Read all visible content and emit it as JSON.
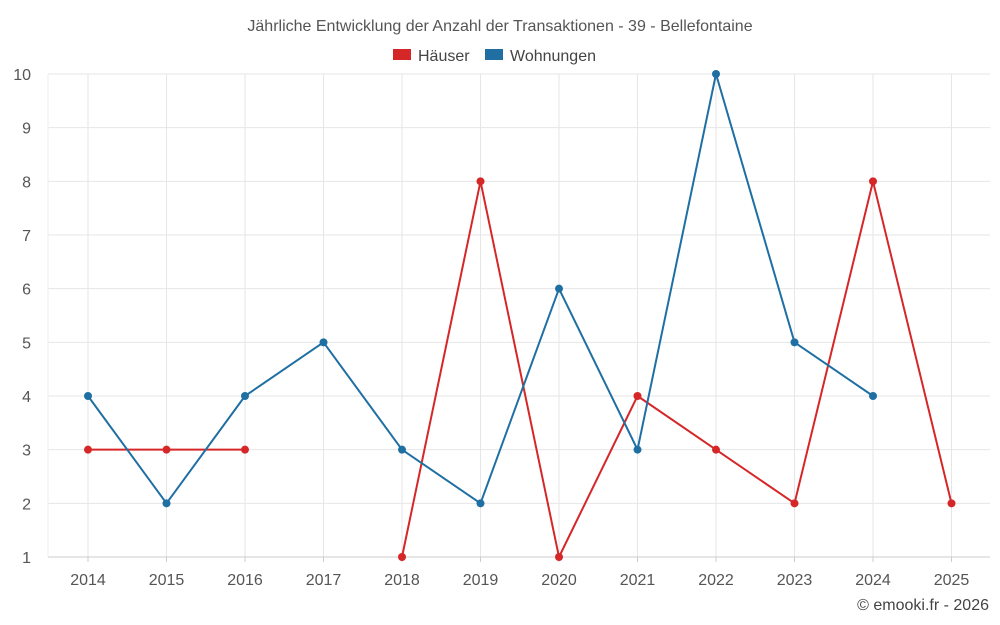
{
  "chart_data": {
    "type": "line",
    "title": "Jährliche Entwicklung der Anzahl der Transaktionen - 39 - Bellefontaine",
    "categories": [
      "2014",
      "2015",
      "2016",
      "2017",
      "2018",
      "2019",
      "2020",
      "2021",
      "2022",
      "2023",
      "2024",
      "2025"
    ],
    "ylim": [
      1,
      10
    ],
    "yticks": [
      1,
      2,
      3,
      4,
      5,
      6,
      7,
      8,
      9,
      10
    ],
    "grid": true,
    "legend_position": "top-center",
    "series": [
      {
        "name": "Häuser",
        "color": "#d62728",
        "values": [
          3,
          3,
          3,
          null,
          1,
          8,
          1,
          4,
          3,
          2,
          8,
          2
        ]
      },
      {
        "name": "Wohnungen",
        "color": "#1f6fa3",
        "values": [
          4,
          2,
          4,
          5,
          3,
          2,
          6,
          3,
          10,
          5,
          4,
          null
        ]
      }
    ],
    "xlabel": "",
    "ylabel": ""
  },
  "credit": "© emooki.fr - 2026"
}
